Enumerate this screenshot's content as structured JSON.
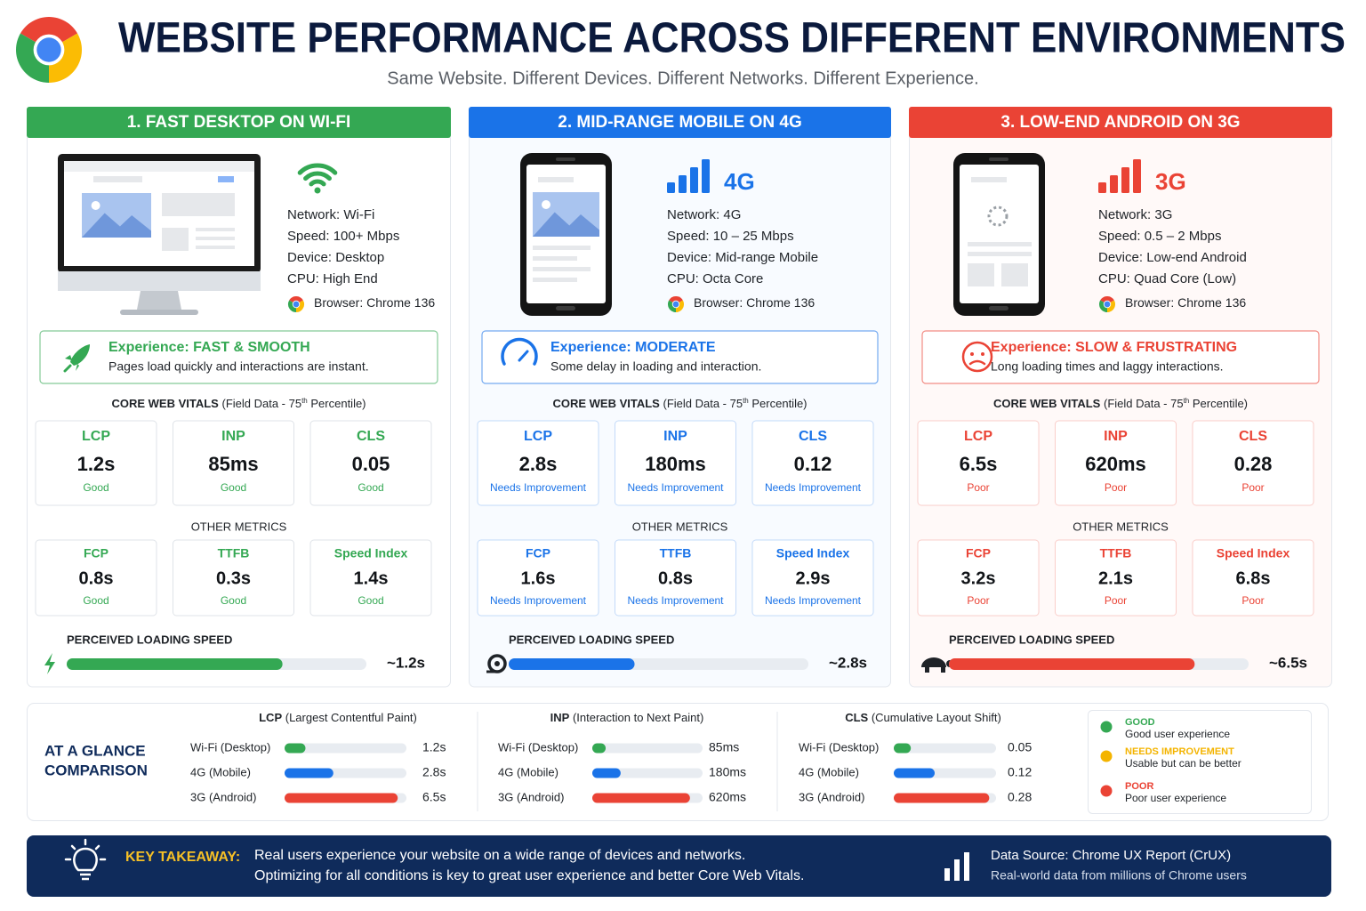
{
  "header": {
    "title": "WEBSITE PERFORMANCE ACROSS DIFFERENT ENVIRONMENTS",
    "subtitle": "Same Website. Different Devices. Different Networks. Different Experience."
  },
  "panels": [
    {
      "heading": "1. FAST DESKTOP ON WI-FI",
      "color": "#34a853",
      "specs": [
        {
          "label": "Network:",
          "value": "Wi-Fi"
        },
        {
          "label": "Speed:",
          "value": "100+ Mbps"
        },
        {
          "label": "Device:",
          "value": "Desktop"
        },
        {
          "label": "CPU:",
          "value": "High End"
        }
      ],
      "browser": {
        "label": "Browser:",
        "value": "Chrome 136"
      },
      "experience": {
        "label": "Experience:",
        "value": "FAST & SMOOTH",
        "description": "Pages load quickly and interactions are instant."
      },
      "vitals_heading": {
        "title": "CORE WEB VITALS",
        "note": "(Field Data - 75",
        "sup": "th",
        "note_end": "Percentile)"
      },
      "core_vitals": [
        {
          "name": "LCP",
          "value": "1.2s",
          "rating": "Good"
        },
        {
          "name": "INP",
          "value": "85ms",
          "rating": "Good"
        },
        {
          "name": "CLS",
          "value": "0.05",
          "rating": "Good"
        }
      ],
      "other_heading": "OTHER METRICS",
      "other_metrics": [
        {
          "name": "FCP",
          "value": "0.8s",
          "rating": "Good"
        },
        {
          "name": "TTFB",
          "value": "0.3s",
          "rating": "Good"
        },
        {
          "name": "Speed Index",
          "value": "1.4s",
          "rating": "Good"
        }
      ],
      "perceived": {
        "title": "PERCEIVED LOADING SPEED",
        "value": "~1.2s",
        "bar_fill": 72
      }
    },
    {
      "heading": "2. MID-RANGE MOBILE ON 4G",
      "color": "#1a73e8",
      "signal_label": "4G",
      "specs": [
        {
          "label": "Network:",
          "value": "4G"
        },
        {
          "label": "Speed:",
          "value": "10 – 25 Mbps"
        },
        {
          "label": "Device:",
          "value": "Mid-range Mobile"
        },
        {
          "label": "CPU:",
          "value": "Octa Core"
        }
      ],
      "browser": {
        "label": "Browser:",
        "value": "Chrome 136"
      },
      "experience": {
        "label": "Experience:",
        "value": "MODERATE",
        "description": "Some delay in loading and interaction."
      },
      "vitals_heading": {
        "title": "CORE WEB VITALS",
        "note": "(Field Data - 75",
        "sup": "th",
        "note_end": "Percentile)"
      },
      "core_vitals": [
        {
          "name": "LCP",
          "value": "2.8s",
          "rating": "Needs Improvement"
        },
        {
          "name": "INP",
          "value": "180ms",
          "rating": "Needs Improvement"
        },
        {
          "name": "CLS",
          "value": "0.12",
          "rating": "Needs Improvement"
        }
      ],
      "other_heading": "OTHER METRICS",
      "other_metrics": [
        {
          "name": "FCP",
          "value": "1.6s",
          "rating": "Needs Improvement"
        },
        {
          "name": "TTFB",
          "value": "0.8s",
          "rating": "Needs Improvement"
        },
        {
          "name": "Speed Index",
          "value": "2.9s",
          "rating": "Needs Improvement"
        }
      ],
      "perceived": {
        "title": "PERCEIVED LOADING SPEED",
        "value": "~2.8s",
        "bar_fill": 42
      }
    },
    {
      "heading": "3. LOW-END ANDROID ON 3G",
      "color": "#ea4335",
      "signal_label": "3G",
      "specs": [
        {
          "label": "Network:",
          "value": "3G"
        },
        {
          "label": "Speed:",
          "value": "0.5 – 2 Mbps"
        },
        {
          "label": "Device:",
          "value": "Low-end Android"
        },
        {
          "label": "CPU:",
          "value": "Quad Core (Low)"
        }
      ],
      "browser": {
        "label": "Browser:",
        "value": "Chrome 136"
      },
      "experience": {
        "label": "Experience:",
        "value": "SLOW & FRUSTRATING",
        "description": "Long loading times and laggy interactions."
      },
      "vitals_heading": {
        "title": "CORE WEB VITALS",
        "note": "(Field Data - 75",
        "sup": "th",
        "note_end": "Percentile)"
      },
      "core_vitals": [
        {
          "name": "LCP",
          "value": "6.5s",
          "rating": "Poor"
        },
        {
          "name": "INP",
          "value": "620ms",
          "rating": "Poor"
        },
        {
          "name": "CLS",
          "value": "0.28",
          "rating": "Poor"
        }
      ],
      "other_heading": "OTHER METRICS",
      "other_metrics": [
        {
          "name": "FCP",
          "value": "3.2s",
          "rating": "Poor"
        },
        {
          "name": "TTFB",
          "value": "2.1s",
          "rating": "Poor"
        },
        {
          "name": "Speed Index",
          "value": "6.8s",
          "rating": "Poor"
        }
      ],
      "perceived": {
        "title": "PERCEIVED LOADING SPEED",
        "value": "~6.5s",
        "bar_fill": 82
      }
    }
  ],
  "comparison": {
    "title_lines": [
      "AT A GLANCE",
      "COMPARISON"
    ],
    "row_colors": [
      "#34a853",
      "#1a73e8",
      "#ea4335"
    ],
    "groups": [
      {
        "metric": "LCP",
        "description": "(Largest Contentful Paint)",
        "labels": [
          "Wi-Fi (Desktop)",
          "4G (Mobile)",
          "3G (Android)"
        ],
        "values": [
          1.2,
          2.8,
          6.5
        ],
        "value_labels": [
          "1.2s",
          "2.8s",
          "6.5s"
        ],
        "xlim": [
          0,
          7
        ]
      },
      {
        "metric": "INP",
        "description": "(Interaction to Next Paint)",
        "labels": [
          "Wi-Fi (Desktop)",
          "4G (Mobile)",
          "3G (Android)"
        ],
        "values": [
          85,
          180,
          620
        ],
        "value_labels": [
          "85ms",
          "180ms",
          "620ms"
        ],
        "xlim": [
          0,
          700
        ]
      },
      {
        "metric": "CLS",
        "description": "(Cumulative Layout Shift)",
        "labels": [
          "Wi-Fi (Desktop)",
          "4G (Mobile)",
          "3G (Android)"
        ],
        "values": [
          0.05,
          0.12,
          0.28
        ],
        "value_labels": [
          "0.05",
          "0.12",
          "0.28"
        ],
        "xlim": [
          0,
          0.3
        ]
      }
    ],
    "legend": [
      {
        "title": "GOOD",
        "description": "Good user experience",
        "color": "#34a853"
      },
      {
        "title": "NEEDS IMPROVEMENT",
        "description": "Usable but can be better",
        "color": "#f4b400"
      },
      {
        "title": "POOR",
        "description": "Poor user experience",
        "color": "#ea4335"
      }
    ]
  },
  "footer": {
    "label": "KEY TAKEAWAY:",
    "lines": [
      "Real users experience your website on a wide range of devices and networks.",
      "Optimizing for all conditions is key to great user experience and better Core Web Vitals."
    ],
    "source_title": "Data Source: Chrome UX Report (CrUX)",
    "source_description": "Real-world data from millions of Chrome users"
  }
}
